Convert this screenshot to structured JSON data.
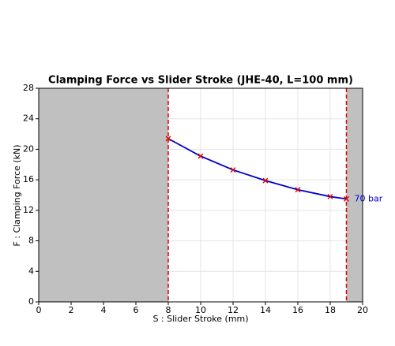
{
  "chart_data": {
    "type": "line",
    "title": "Clamping Force vs Slider Stroke (JHE-40, L=100 mm)",
    "x_label": "S : Slider Stroke (mm)",
    "y_label": "F : Clamping Force (kN)",
    "x": [
      8,
      10,
      12,
      14,
      16,
      18,
      19
    ],
    "series": [
      {
        "name": "70 bar",
        "color": "#0000cc",
        "marker_color": "#dd0000",
        "values": [
          21.4,
          19.1,
          17.3,
          15.9,
          14.7,
          13.8,
          13.5
        ]
      }
    ],
    "xlim": [
      0,
      20
    ],
    "ylim": [
      0,
      28
    ],
    "xticks": [
      0,
      2,
      4,
      6,
      8,
      10,
      12,
      14,
      16,
      18,
      20
    ],
    "yticks": [
      0,
      4,
      8,
      12,
      16,
      20,
      24,
      28
    ],
    "grid": true,
    "shaded_regions": [
      [
        0,
        8
      ],
      [
        19,
        20
      ]
    ],
    "shade_color": "#c0c0c0",
    "vlines": [
      8,
      19
    ],
    "vline_color": "#dd0000"
  }
}
